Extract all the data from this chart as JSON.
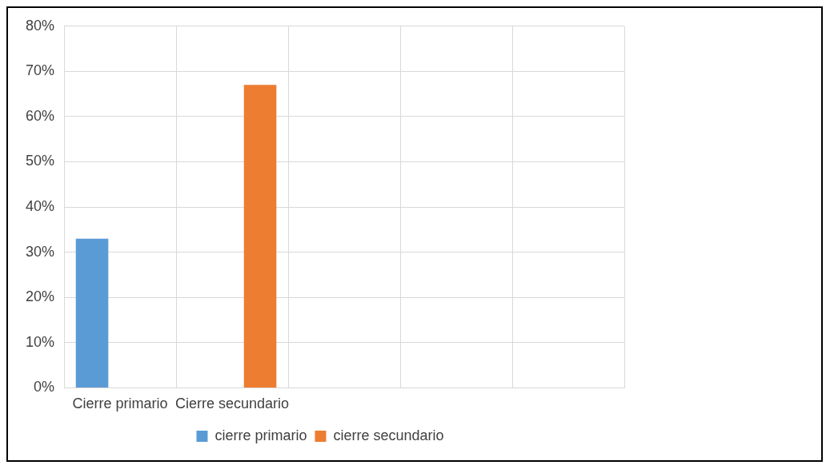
{
  "chart_data": {
    "type": "bar",
    "categories": [
      "Cierre primario",
      "Cierre secundario",
      null,
      null,
      null
    ],
    "series": [
      {
        "name": "cierre primario",
        "color": "#5b9bd5",
        "values": [
          33,
          null,
          null,
          null,
          null
        ]
      },
      {
        "name": "cierre secundario",
        "color": "#ed7d31",
        "values": [
          null,
          67,
          null,
          null,
          null
        ]
      }
    ],
    "ylim": [
      0,
      80
    ],
    "yticks": [
      {
        "value": 0,
        "label": "0%"
      },
      {
        "value": 10,
        "label": "10%"
      },
      {
        "value": 20,
        "label": "20%"
      },
      {
        "value": 30,
        "label": "30%"
      },
      {
        "value": 40,
        "label": "40%"
      },
      {
        "value": 50,
        "label": "50%"
      },
      {
        "value": 60,
        "label": "60%"
      },
      {
        "value": 70,
        "label": "70%"
      },
      {
        "value": 80,
        "label": "80%"
      }
    ],
    "grid": true,
    "legend": "bottom"
  }
}
